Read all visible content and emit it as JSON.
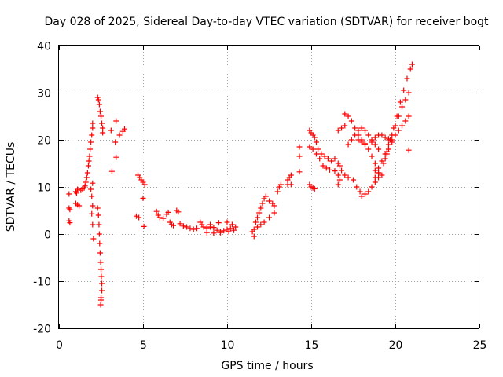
{
  "chart_data": {
    "type": "scatter",
    "title": "Day 028 of 2025, Sidereal Day-to-day VTEC variation (SDTVAR) for receiver bogt",
    "xlabel": "GPS time / hours",
    "ylabel": "SDTVAR / TECUs",
    "xlim": [
      0,
      25
    ],
    "ylim": [
      -20,
      40
    ],
    "xticks": [
      0,
      5,
      10,
      15,
      20,
      25
    ],
    "xtick_labels": [
      "0",
      "5",
      "10",
      "15",
      "20",
      "25"
    ],
    "yticks": [
      -20,
      -10,
      0,
      10,
      20,
      30,
      40
    ],
    "ytick_labels": [
      "-20",
      "-10",
      "0",
      "10",
      "20",
      "30",
      "40"
    ],
    "grid": true,
    "marker": "+",
    "color": "#ff0000",
    "series": [
      {
        "name": "SDTVAR",
        "points": [
          [
            0.6,
            8.5
          ],
          [
            0.6,
            5.5
          ],
          [
            0.65,
            5.2
          ],
          [
            0.6,
            2.8
          ],
          [
            0.65,
            2.4
          ],
          [
            1.0,
            9.0
          ],
          [
            1.05,
            8.7
          ],
          [
            1.1,
            9.5
          ],
          [
            1.0,
            6.5
          ],
          [
            1.1,
            6.2
          ],
          [
            1.2,
            6.0
          ],
          [
            1.3,
            9.3
          ],
          [
            1.4,
            9.6
          ],
          [
            1.5,
            9.8
          ],
          [
            1.55,
            10.2
          ],
          [
            1.6,
            11.0
          ],
          [
            1.65,
            12.0
          ],
          [
            1.7,
            13.0
          ],
          [
            1.75,
            14.5
          ],
          [
            1.78,
            15.5
          ],
          [
            1.82,
            16.5
          ],
          [
            1.85,
            18.0
          ],
          [
            1.9,
            19.5
          ],
          [
            1.95,
            21.0
          ],
          [
            2.0,
            22.5
          ],
          [
            2.0,
            23.5
          ],
          [
            1.9,
            9.5
          ],
          [
            1.95,
            8.0
          ],
          [
            2.0,
            6.0
          ],
          [
            1.95,
            4.3
          ],
          [
            2.0,
            2.0
          ],
          [
            2.05,
            -1.0
          ],
          [
            2.0,
            10.8
          ],
          [
            2.3,
            29.0
          ],
          [
            2.35,
            28.5
          ],
          [
            2.4,
            27.5
          ],
          [
            2.45,
            26.0
          ],
          [
            2.5,
            25.0
          ],
          [
            2.55,
            23.5
          ],
          [
            2.6,
            22.5
          ],
          [
            2.6,
            21.5
          ],
          [
            2.3,
            5.5
          ],
          [
            2.35,
            4.0
          ],
          [
            2.38,
            2.0
          ],
          [
            2.4,
            0.0
          ],
          [
            2.42,
            -2.0
          ],
          [
            2.45,
            -4.0
          ],
          [
            2.48,
            -6.0
          ],
          [
            2.5,
            -7.5
          ],
          [
            2.52,
            -9.0
          ],
          [
            2.55,
            -10.5
          ],
          [
            2.55,
            -12.0
          ],
          [
            2.5,
            -13.5
          ],
          [
            2.48,
            -15.0
          ],
          [
            2.5,
            -14.0
          ],
          [
            3.1,
            22.0
          ],
          [
            3.15,
            13.3
          ],
          [
            3.4,
            24.0
          ],
          [
            3.35,
            19.5
          ],
          [
            3.4,
            16.3
          ],
          [
            3.6,
            21.0
          ],
          [
            3.8,
            21.8
          ],
          [
            3.9,
            22.3
          ],
          [
            4.7,
            12.5
          ],
          [
            4.8,
            12.0
          ],
          [
            4.9,
            11.5
          ],
          [
            5.0,
            11.0
          ],
          [
            5.1,
            10.5
          ],
          [
            4.6,
            3.8
          ],
          [
            4.75,
            3.5
          ],
          [
            5.0,
            7.6
          ],
          [
            5.05,
            1.6
          ],
          [
            5.8,
            4.8
          ],
          [
            5.9,
            4.0
          ],
          [
            6.0,
            3.5
          ],
          [
            6.2,
            3.3
          ],
          [
            6.4,
            4.2
          ],
          [
            6.5,
            4.6
          ],
          [
            6.6,
            2.5
          ],
          [
            6.7,
            2.0
          ],
          [
            6.8,
            1.8
          ],
          [
            7.0,
            5.0
          ],
          [
            7.1,
            4.7
          ],
          [
            7.2,
            2.2
          ],
          [
            7.4,
            1.7
          ],
          [
            7.6,
            1.5
          ],
          [
            7.8,
            1.2
          ],
          [
            8.0,
            1.0
          ],
          [
            8.2,
            1.2
          ],
          [
            8.4,
            2.5
          ],
          [
            8.5,
            2.0
          ],
          [
            8.6,
            1.5
          ],
          [
            8.8,
            1.3
          ],
          [
            9.0,
            1.5
          ],
          [
            9.2,
            1.4
          ],
          [
            9.4,
            0.8
          ],
          [
            9.6,
            0.5
          ],
          [
            9.8,
            0.7
          ],
          [
            10.0,
            1.0
          ],
          [
            10.2,
            1.2
          ],
          [
            9.0,
            2.0
          ],
          [
            9.5,
            2.4
          ],
          [
            10.0,
            2.5
          ],
          [
            10.3,
            2.0
          ],
          [
            10.5,
            1.5
          ],
          [
            8.8,
            0.3
          ],
          [
            9.2,
            0.2
          ],
          [
            9.6,
            0.3
          ],
          [
            10.1,
            0.5
          ],
          [
            10.4,
            0.8
          ],
          [
            11.5,
            0.5
          ],
          [
            11.6,
            1.0
          ],
          [
            11.8,
            1.5
          ],
          [
            12.0,
            2.0
          ],
          [
            12.2,
            2.5
          ],
          [
            12.5,
            3.5
          ],
          [
            12.8,
            4.5
          ],
          [
            11.6,
            -0.5
          ],
          [
            11.7,
            2.5
          ],
          [
            11.8,
            3.5
          ],
          [
            11.9,
            4.5
          ],
          [
            12.0,
            5.5
          ],
          [
            12.1,
            6.5
          ],
          [
            12.2,
            7.5
          ],
          [
            12.3,
            8.0
          ],
          [
            12.5,
            7.0
          ],
          [
            12.7,
            6.5
          ],
          [
            12.8,
            6.0
          ],
          [
            13.0,
            9.0
          ],
          [
            13.1,
            10.0
          ],
          [
            13.2,
            10.5
          ],
          [
            13.6,
            11.5
          ],
          [
            13.7,
            12.0
          ],
          [
            13.8,
            12.5
          ],
          [
            13.6,
            10.5
          ],
          [
            13.8,
            10.5
          ],
          [
            14.3,
            18.5
          ],
          [
            14.3,
            16.5
          ],
          [
            14.3,
            13.2
          ],
          [
            14.9,
            22.0
          ],
          [
            15.0,
            21.5
          ],
          [
            15.1,
            21.0
          ],
          [
            15.2,
            20.5
          ],
          [
            15.3,
            19.5
          ],
          [
            15.4,
            18.0
          ],
          [
            15.6,
            17.0
          ],
          [
            15.8,
            16.5
          ],
          [
            16.0,
            16.0
          ],
          [
            16.2,
            15.5
          ],
          [
            16.4,
            16.0
          ],
          [
            14.9,
            18.5
          ],
          [
            15.1,
            18.0
          ],
          [
            15.3,
            17.0
          ],
          [
            15.5,
            16.0
          ],
          [
            15.7,
            14.5
          ],
          [
            15.9,
            14.0
          ],
          [
            16.1,
            13.6
          ],
          [
            16.4,
            13.4
          ],
          [
            14.9,
            10.5
          ],
          [
            15.0,
            10.0
          ],
          [
            15.1,
            9.8
          ],
          [
            15.2,
            9.6
          ],
          [
            16.6,
            22.0
          ],
          [
            16.8,
            22.5
          ],
          [
            17.0,
            23.0
          ],
          [
            16.6,
            15.0
          ],
          [
            16.7,
            14.5
          ],
          [
            16.8,
            13.5
          ],
          [
            16.6,
            12.5
          ],
          [
            16.7,
            11.5
          ],
          [
            16.6,
            10.5
          ],
          [
            17.0,
            25.5
          ],
          [
            17.2,
            25.0
          ],
          [
            17.4,
            24.0
          ],
          [
            17.6,
            22.5
          ],
          [
            17.8,
            21.0
          ],
          [
            18.0,
            20.0
          ],
          [
            18.2,
            19.0
          ],
          [
            18.4,
            18.0
          ],
          [
            18.6,
            16.5
          ],
          [
            18.8,
            15.0
          ],
          [
            19.0,
            13.0
          ],
          [
            19.2,
            12.5
          ],
          [
            17.2,
            19.0
          ],
          [
            17.4,
            20.0
          ],
          [
            17.6,
            21.0
          ],
          [
            17.8,
            22.0
          ],
          [
            18.0,
            22.5
          ],
          [
            18.2,
            22.0
          ],
          [
            18.4,
            21.0
          ],
          [
            18.6,
            20.0
          ],
          [
            18.8,
            19.0
          ],
          [
            19.0,
            18.0
          ],
          [
            17.0,
            12.5
          ],
          [
            17.2,
            12.0
          ],
          [
            17.5,
            11.5
          ],
          [
            17.7,
            10.0
          ],
          [
            17.9,
            9.0
          ],
          [
            18.0,
            8.0
          ],
          [
            18.2,
            8.5
          ],
          [
            18.4,
            9.0
          ],
          [
            18.6,
            10.0
          ],
          [
            18.8,
            11.0
          ],
          [
            19.0,
            12.0
          ],
          [
            17.8,
            20.0
          ],
          [
            18.0,
            19.5
          ],
          [
            18.2,
            19.2
          ],
          [
            18.6,
            19.5
          ],
          [
            18.8,
            20.5
          ],
          [
            19.0,
            21.0
          ],
          [
            19.2,
            21.0
          ],
          [
            19.4,
            20.5
          ],
          [
            19.6,
            20.2
          ],
          [
            19.8,
            20.0
          ],
          [
            18.8,
            13.5
          ],
          [
            19.0,
            14.0
          ],
          [
            19.2,
            15.5
          ],
          [
            19.4,
            17.0
          ],
          [
            19.6,
            19.0
          ],
          [
            19.8,
            21.0
          ],
          [
            20.0,
            23.0
          ],
          [
            20.2,
            25.0
          ],
          [
            20.4,
            27.0
          ],
          [
            20.6,
            28.5
          ],
          [
            20.8,
            30.0
          ],
          [
            18.8,
            12.0
          ],
          [
            19.0,
            13.0
          ],
          [
            19.3,
            15.0
          ],
          [
            19.5,
            17.5
          ],
          [
            19.7,
            20.0
          ],
          [
            19.9,
            22.5
          ],
          [
            20.1,
            25.0
          ],
          [
            20.3,
            28.0
          ],
          [
            20.5,
            30.5
          ],
          [
            20.7,
            33.0
          ],
          [
            20.9,
            35.0
          ],
          [
            21.0,
            36.0
          ],
          [
            19.4,
            16.0
          ],
          [
            19.5,
            17.0
          ],
          [
            19.6,
            18.0
          ],
          [
            19.8,
            19.5
          ],
          [
            20.0,
            21.0
          ],
          [
            20.2,
            22.0
          ],
          [
            20.4,
            23.0
          ],
          [
            20.6,
            24.0
          ],
          [
            20.8,
            25.0
          ],
          [
            20.8,
            17.8
          ]
        ]
      }
    ]
  }
}
